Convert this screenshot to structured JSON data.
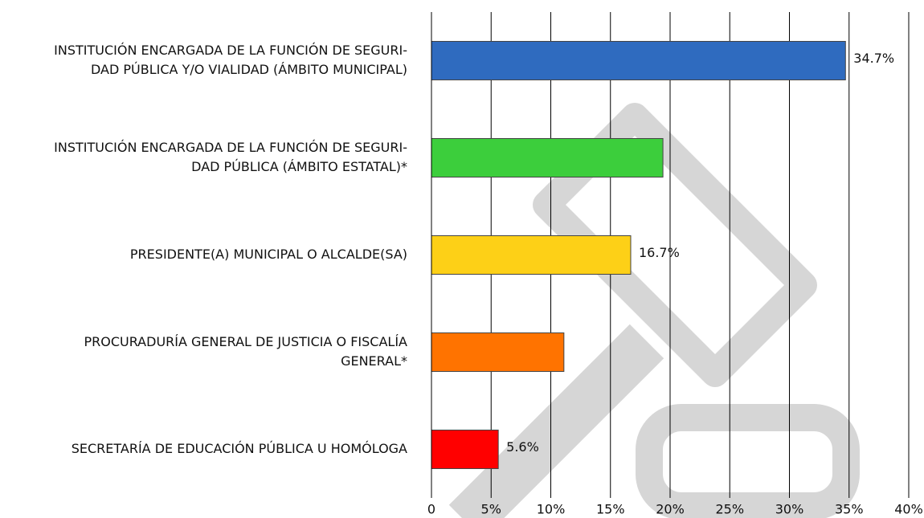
{
  "chart_data": {
    "type": "bar",
    "orientation": "horizontal",
    "categories": [
      [
        "INSTITUCIÓN ENCARGADA DE LA FUNCIÓN DE SEGURI-",
        "DAD PÚBLICA Y/O VIALIDAD (ÁMBITO MUNICIPAL)"
      ],
      [
        "INSTITUCIÓN ENCARGADA DE LA FUNCIÓN DE SEGURI-",
        "DAD PÚBLICA (ÁMBITO ESTATAL)*"
      ],
      [
        "PRESIDENTE(A) MUNICIPAL O ALCALDE(SA)"
      ],
      [
        "PROCURADURÍA GENERAL DE JUSTICIA O FISCALÍA",
        "GENERAL*"
      ],
      [
        "SECRETARÍA DE EDUCACIÓN PÚBLICA U HOMÓLOGA"
      ]
    ],
    "values": [
      34.7,
      19.4,
      16.7,
      11.1,
      5.6
    ],
    "value_labels": [
      "34.7%",
      null,
      "16.7%",
      null,
      "5.6%"
    ],
    "colors": [
      "#2f6bbf",
      "#3cce3c",
      "#fdd017",
      "#ff7300",
      "#ff0000"
    ],
    "xlim": [
      0,
      40
    ],
    "xticks": [
      0,
      {
        "value": 5,
        "label": "5%"
      },
      {
        "value": 10,
        "label": "10%"
      },
      {
        "value": 15,
        "label": "15%"
      },
      {
        "value": 20,
        "label": "20%"
      },
      {
        "value": 25,
        "label": "25%"
      },
      {
        "value": 30,
        "label": "30%"
      },
      {
        "value": 35,
        "label": "35%"
      },
      {
        "value": 40,
        "label": "40%"
      }
    ],
    "grid": true
  }
}
